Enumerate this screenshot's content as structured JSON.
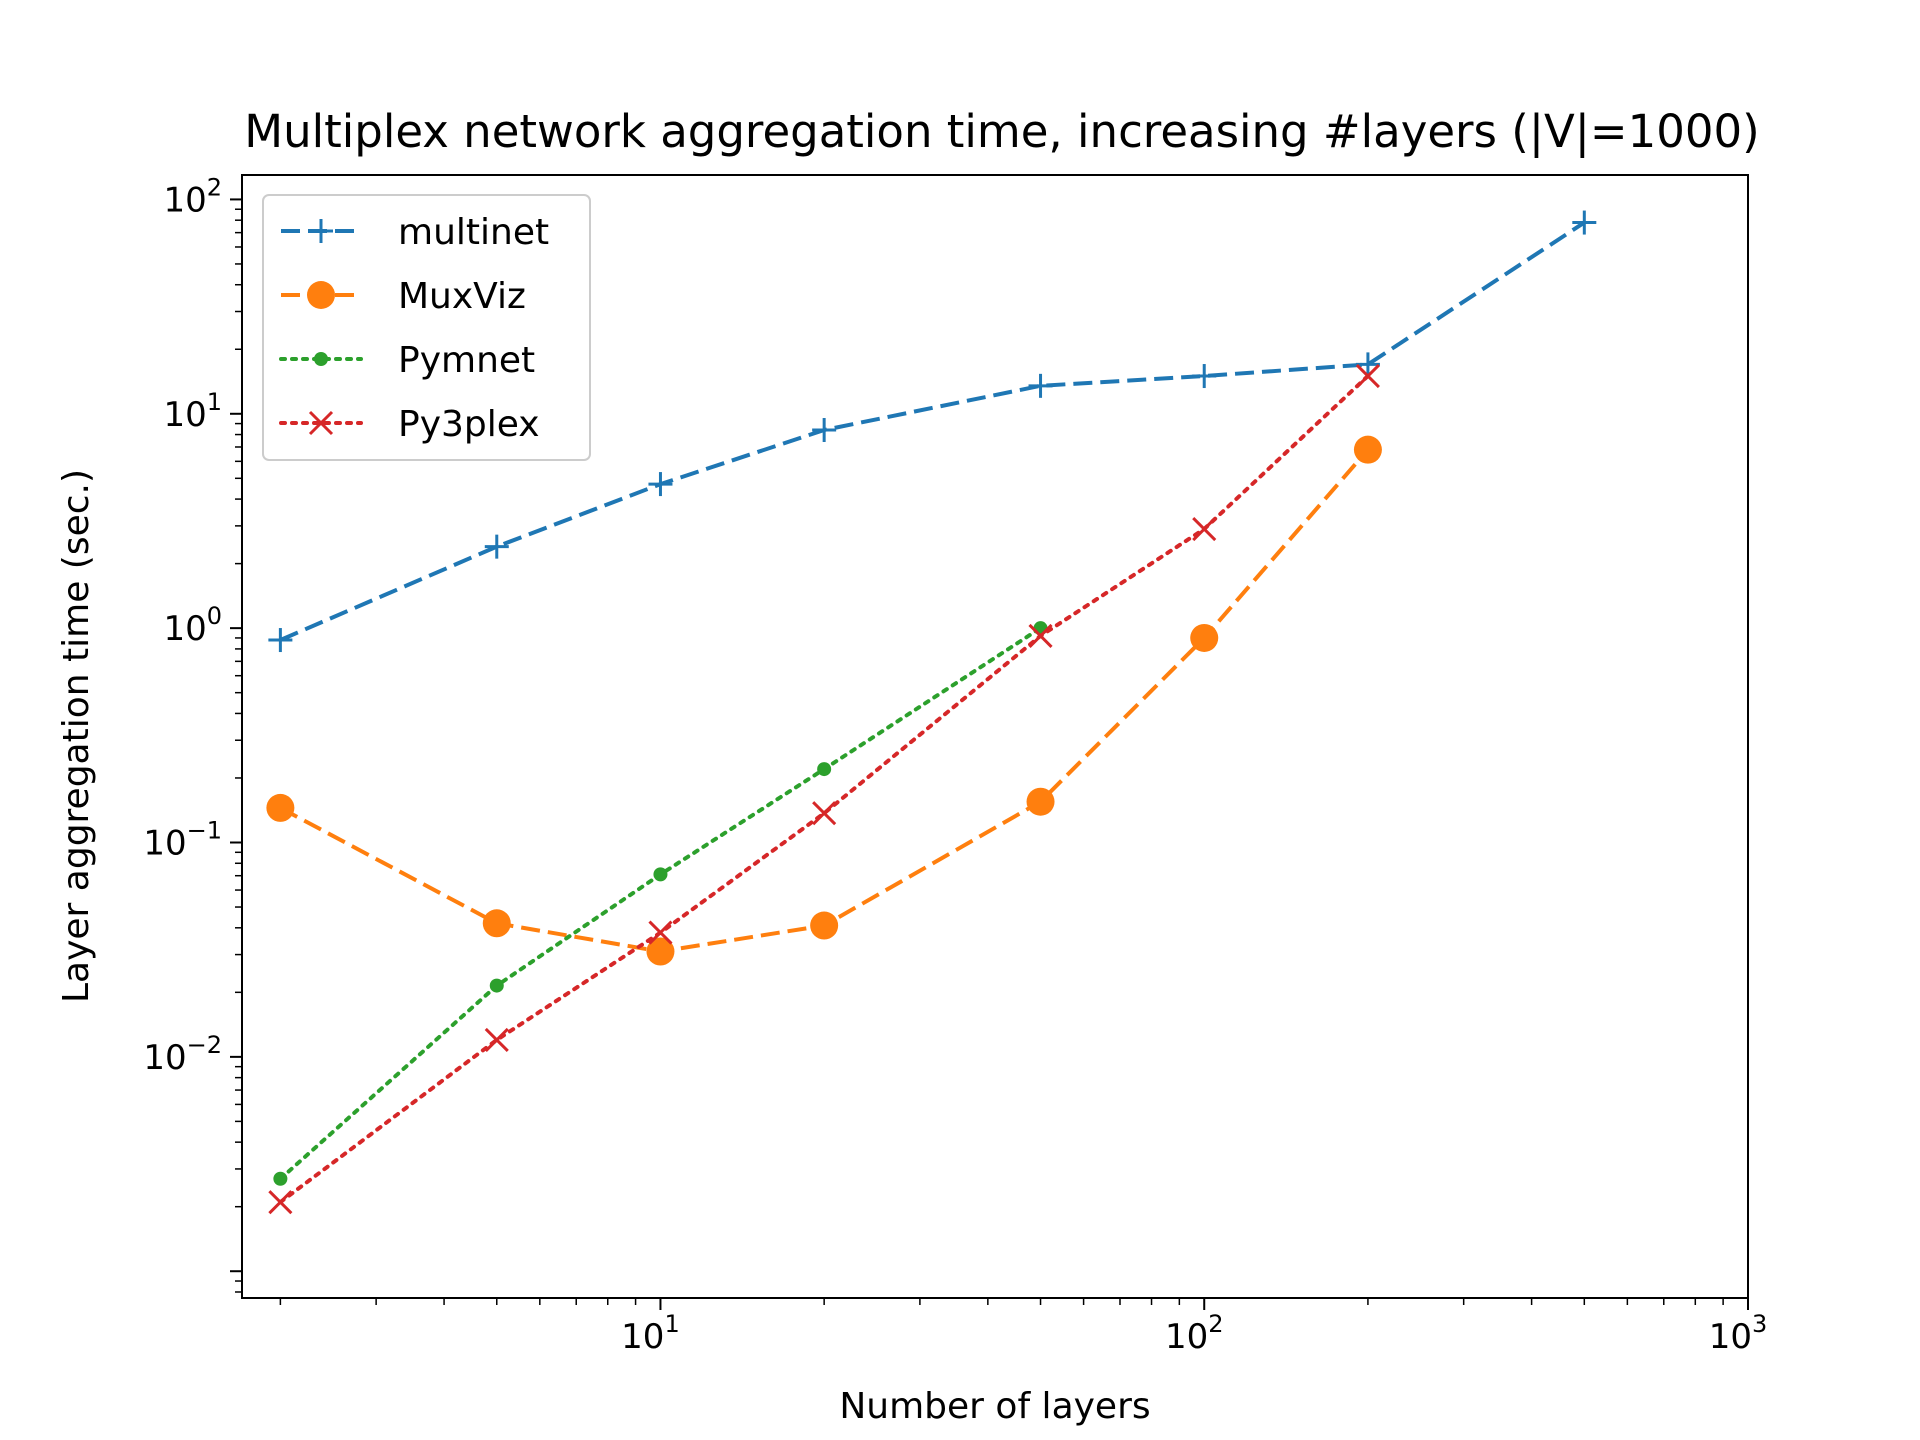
{
  "chart_data": {
    "type": "line",
    "title": "Multiplex network aggregation time, increasing #layers (|V|=1000)",
    "xlabel": "Number of layers",
    "ylabel": "Layer aggregation time (sec.)",
    "xscale": "log",
    "yscale": "log",
    "xlim": [
      1.7,
      1000
    ],
    "ylim": [
      0.00075,
      130
    ],
    "x_ticks": [
      {
        "value": 10,
        "base": "10",
        "exp": "1"
      },
      {
        "value": 100,
        "base": "10",
        "exp": "2"
      },
      {
        "value": 1000,
        "base": "10",
        "exp": "3"
      }
    ],
    "y_ticks": [
      {
        "value": 0.01,
        "base": "10",
        "exp": "−2"
      },
      {
        "value": 0.1,
        "base": "10",
        "exp": "−1"
      },
      {
        "value": 1,
        "base": "10",
        "exp": "0"
      },
      {
        "value": 10,
        "base": "10",
        "exp": "1"
      },
      {
        "value": 100,
        "base": "10",
        "exp": "2"
      }
    ],
    "grid": false,
    "legend_position": "top-left",
    "series": [
      {
        "name": "multinet",
        "color": "#1f77b4",
        "line_style": "dashed",
        "marker": "plus",
        "x": [
          2,
          5,
          10,
          20,
          50,
          100,
          200,
          500
        ],
        "y": [
          0.88,
          2.4,
          4.7,
          8.4,
          13.5,
          15,
          17,
          78
        ]
      },
      {
        "name": "MuxViz",
        "color": "#ff7f0e",
        "line_style": "dashed",
        "marker": "circle",
        "x": [
          2,
          5,
          10,
          20,
          50,
          100,
          200
        ],
        "y": [
          0.145,
          0.042,
          0.031,
          0.041,
          0.155,
          0.9,
          6.8
        ]
      },
      {
        "name": "Pymnet",
        "color": "#2ca02c",
        "line_style": "dotted",
        "marker": "dot",
        "x": [
          2,
          5,
          10,
          20,
          50
        ],
        "y": [
          0.0027,
          0.0215,
          0.071,
          0.22,
          1.0
        ]
      },
      {
        "name": "Py3plex",
        "color": "#d62728",
        "line_style": "dotted",
        "marker": "x",
        "x": [
          2,
          5,
          10,
          20,
          50,
          100,
          200
        ],
        "y": [
          0.0021,
          0.012,
          0.038,
          0.137,
          0.92,
          2.9,
          15
        ]
      }
    ]
  }
}
